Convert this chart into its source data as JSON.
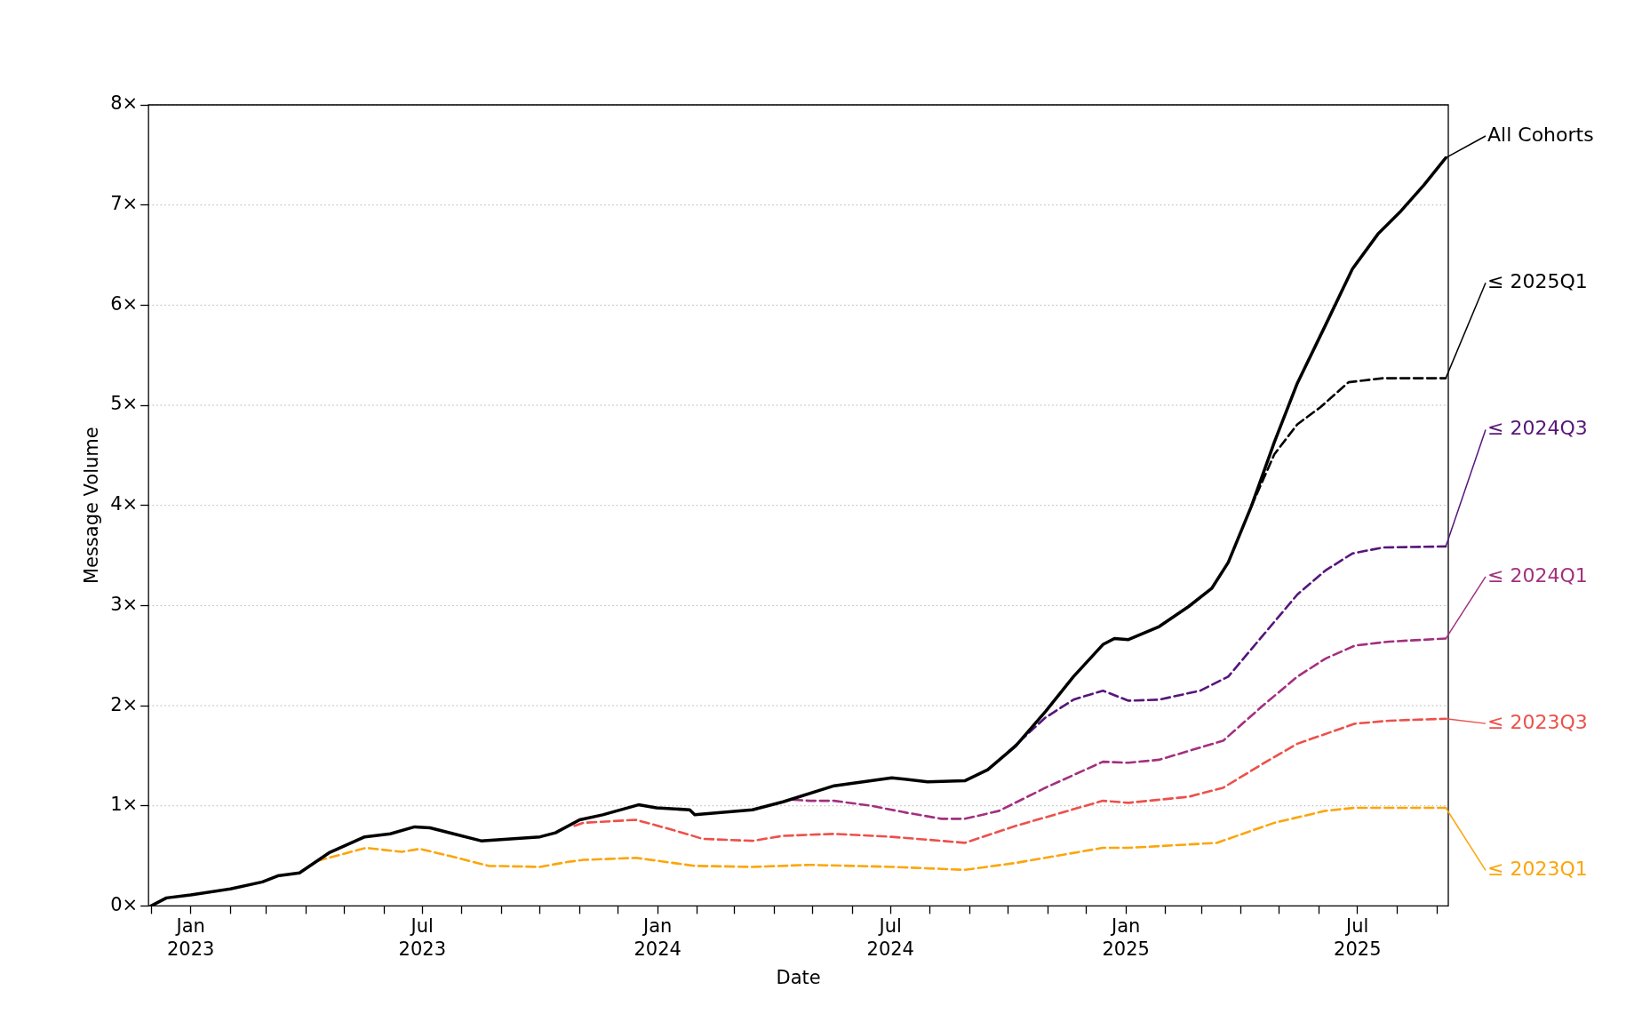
{
  "chart_data": {
    "type": "line",
    "xlabel": "Date",
    "ylabel": "Message Volume",
    "legend": "right",
    "marker": "none",
    "grid": "y",
    "xlim": [
      "2022-11-29",
      "2025-09-10"
    ],
    "xticks": [
      {
        "value": "2022-12-01",
        "label": null
      },
      {
        "value": "2023-01-01",
        "label": "Jan\n2023"
      },
      {
        "value": "2023-02-01",
        "label": null
      },
      {
        "value": "2023-03-01",
        "label": null
      },
      {
        "value": "2023-04-01",
        "label": null
      },
      {
        "value": "2023-05-01",
        "label": null
      },
      {
        "value": "2023-06-01",
        "label": null
      },
      {
        "value": "2023-07-01",
        "label": "Jul\n2023"
      },
      {
        "value": "2023-08-01",
        "label": null
      },
      {
        "value": "2023-09-01",
        "label": null
      },
      {
        "value": "2023-10-01",
        "label": null
      },
      {
        "value": "2023-11-01",
        "label": null
      },
      {
        "value": "2023-12-01",
        "label": null
      },
      {
        "value": "2024-01-01",
        "label": "Jan\n2024"
      },
      {
        "value": "2024-02-01",
        "label": null
      },
      {
        "value": "2024-03-01",
        "label": null
      },
      {
        "value": "2024-04-01",
        "label": null
      },
      {
        "value": "2024-05-01",
        "label": null
      },
      {
        "value": "2024-06-01",
        "label": null
      },
      {
        "value": "2024-07-01",
        "label": "Jul\n2024"
      },
      {
        "value": "2024-08-01",
        "label": null
      },
      {
        "value": "2024-09-01",
        "label": null
      },
      {
        "value": "2024-10-01",
        "label": null
      },
      {
        "value": "2024-11-01",
        "label": null
      },
      {
        "value": "2024-12-01",
        "label": null
      },
      {
        "value": "2025-01-01",
        "label": "Jan\n2025"
      },
      {
        "value": "2025-02-01",
        "label": null
      },
      {
        "value": "2025-03-01",
        "label": null
      },
      {
        "value": "2025-04-01",
        "label": null
      },
      {
        "value": "2025-05-01",
        "label": null
      },
      {
        "value": "2025-06-01",
        "label": null
      },
      {
        "value": "2025-07-01",
        "label": "Jul\n2025"
      },
      {
        "value": "2025-08-01",
        "label": null
      },
      {
        "value": "2025-09-01",
        "label": null
      }
    ],
    "ylim": [
      0,
      8
    ],
    "yticks": [
      {
        "value": 0,
        "label": "0×"
      },
      {
        "value": 1,
        "label": "1×"
      },
      {
        "value": 2,
        "label": "2×"
      },
      {
        "value": 3,
        "label": "3×"
      },
      {
        "value": 4,
        "label": "4×"
      },
      {
        "value": 5,
        "label": "5×"
      },
      {
        "value": 6,
        "label": "6×"
      },
      {
        "value": 7,
        "label": "7×"
      },
      {
        "value": 8,
        "label": "8×"
      }
    ],
    "series": [
      {
        "name": "All Cohorts",
        "color": "#000000",
        "line_style": "solid",
        "x": [
          "2022-12-01",
          "2022-12-13",
          "2023-01-01",
          "2023-02-01",
          "2023-02-26",
          "2023-03-10",
          "2023-03-27",
          "2023-04-19",
          "2023-05-17",
          "2023-06-06",
          "2023-06-25",
          "2023-07-07",
          "2023-08-16",
          "2023-10-01",
          "2023-10-13",
          "2023-11-01",
          "2023-11-19",
          "2023-12-17",
          "2023-12-31",
          "2024-01-26",
          "2024-01-30",
          "2024-03-15",
          "2024-04-08",
          "2024-05-18",
          "2024-07-02",
          "2024-07-30",
          "2024-08-28",
          "2024-09-15",
          "2024-10-07",
          "2024-10-30",
          "2024-11-21",
          "2024-12-14",
          "2024-12-23",
          "2025-01-03",
          "2025-01-27",
          "2025-02-19",
          "2025-03-09",
          "2025-03-22",
          "2025-04-09",
          "2025-04-27",
          "2025-05-15",
          "2025-06-06",
          "2025-06-27",
          "2025-07-17",
          "2025-08-04",
          "2025-08-22",
          "2025-09-08"
        ],
        "values": [
          0,
          0.08,
          0.11,
          0.17,
          0.24,
          0.3,
          0.33,
          0.53,
          0.69,
          0.72,
          0.79,
          0.78,
          0.65,
          0.69,
          0.73,
          0.86,
          0.91,
          1.01,
          0.98,
          0.96,
          0.91,
          0.96,
          1.04,
          1.2,
          1.28,
          1.24,
          1.25,
          1.36,
          1.6,
          1.94,
          2.29,
          2.61,
          2.67,
          2.66,
          2.79,
          2.99,
          3.17,
          3.43,
          3.99,
          4.63,
          5.22,
          5.8,
          6.36,
          6.71,
          6.94,
          7.2,
          7.47
        ]
      },
      {
        "name": "≤ 2025Q1",
        "color": "#000000",
        "line_style": "dashed",
        "x": [
          "2025-04-09",
          "2025-04-27",
          "2025-05-15",
          "2025-06-02",
          "2025-06-24",
          "2025-07-21",
          "2025-09-08"
        ],
        "values": [
          3.99,
          4.51,
          4.81,
          4.98,
          5.23,
          5.27,
          5.27
        ]
      },
      {
        "name": "≤ 2024Q3",
        "color": "#56167a",
        "line_style": "dashed",
        "x": [
          "2024-10-02",
          "2024-10-30",
          "2024-11-21",
          "2024-12-14",
          "2025-01-03",
          "2025-01-27",
          "2025-02-28",
          "2025-03-22",
          "2025-04-18",
          "2025-05-15",
          "2025-06-06",
          "2025-06-27",
          "2025-07-21",
          "2025-09-08"
        ],
        "values": [
          1.55,
          1.88,
          2.06,
          2.15,
          2.05,
          2.06,
          2.15,
          2.29,
          2.7,
          3.11,
          3.35,
          3.52,
          3.58,
          3.59
        ]
      },
      {
        "name": "≤ 2024Q1",
        "color": "#a3307e",
        "line_style": "dashed",
        "x": [
          "2024-04-16",
          "2024-04-29",
          "2024-05-18",
          "2024-06-16",
          "2024-07-14",
          "2024-08-10",
          "2024-08-28",
          "2024-09-24",
          "2024-10-30",
          "2024-12-14",
          "2025-01-03",
          "2025-01-27",
          "2025-03-18",
          "2025-04-18",
          "2025-05-15",
          "2025-06-06",
          "2025-06-29",
          "2025-07-26",
          "2025-09-08"
        ],
        "values": [
          1.06,
          1.05,
          1.05,
          1.0,
          0.93,
          0.87,
          0.87,
          0.95,
          1.18,
          1.44,
          1.43,
          1.46,
          1.65,
          2.0,
          2.29,
          2.47,
          2.6,
          2.64,
          2.67
        ]
      },
      {
        "name": "≤ 2023Q3",
        "color": "#ed504a",
        "line_style": "dashed",
        "x": [
          "2023-10-28",
          "2023-11-04",
          "2023-12-15",
          "2024-01-04",
          "2024-01-26",
          "2024-02-05",
          "2024-03-15",
          "2024-04-08",
          "2024-05-18",
          "2024-07-02",
          "2024-08-10",
          "2024-08-28",
          "2024-10-07",
          "2024-12-14",
          "2025-01-03",
          "2025-02-19",
          "2025-03-18",
          "2025-04-18",
          "2025-05-15",
          "2025-06-29",
          "2025-07-26",
          "2025-09-08"
        ],
        "values": [
          0.8,
          0.83,
          0.86,
          0.79,
          0.71,
          0.67,
          0.65,
          0.7,
          0.72,
          0.69,
          0.65,
          0.63,
          0.8,
          1.05,
          1.03,
          1.09,
          1.18,
          1.42,
          1.62,
          1.82,
          1.85,
          1.87
        ]
      },
      {
        "name": "≤ 2023Q1",
        "color": "#fca50a",
        "line_style": "dashed",
        "x": [
          "2023-04-10",
          "2023-05-18",
          "2023-06-15",
          "2023-06-29",
          "2023-07-22",
          "2023-08-22",
          "2023-10-01",
          "2023-10-23",
          "2023-11-04",
          "2023-12-15",
          "2024-01-30",
          "2024-03-15",
          "2024-04-29",
          "2024-07-02",
          "2024-08-10",
          "2024-08-28",
          "2024-10-07",
          "2024-12-14",
          "2025-01-03",
          "2025-03-13",
          "2025-04-27",
          "2025-06-06",
          "2025-06-29",
          "2025-09-08"
        ],
        "values": [
          0.45,
          0.58,
          0.54,
          0.57,
          0.5,
          0.4,
          0.39,
          0.44,
          0.46,
          0.48,
          0.4,
          0.39,
          0.41,
          0.39,
          0.37,
          0.36,
          0.43,
          0.58,
          0.58,
          0.63,
          0.83,
          0.95,
          0.98,
          0.98
        ]
      }
    ]
  }
}
